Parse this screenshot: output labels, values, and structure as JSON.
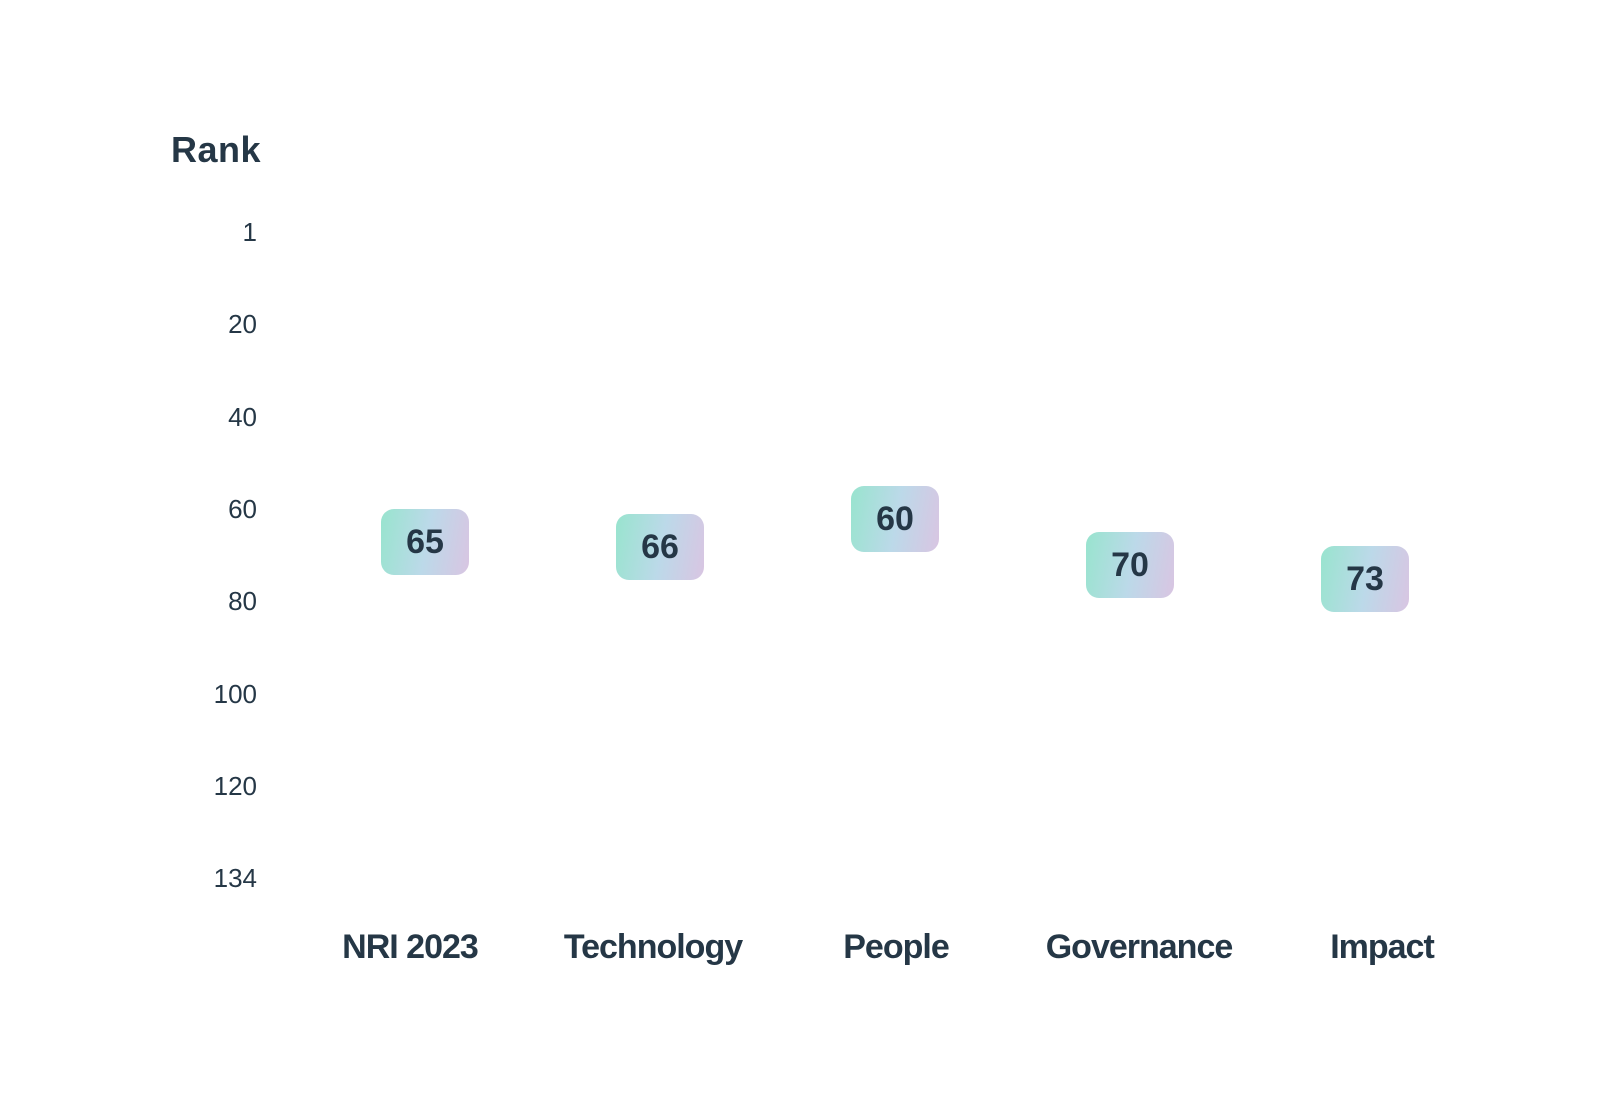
{
  "chart_data": {
    "type": "scatter",
    "subtype": "rank-badge-chart",
    "title": "",
    "ylabel": "Rank",
    "xlabel": "",
    "categories": [
      "NRI 2023",
      "Technology",
      "People",
      "Governance",
      "Impact"
    ],
    "values": [
      65,
      66,
      60,
      70,
      73
    ],
    "yticks": [
      1,
      20,
      40,
      60,
      80,
      100,
      120,
      134
    ],
    "ylim": [
      1,
      134
    ],
    "y_axis_inverted": true,
    "grid": false,
    "legend": false,
    "marker": "rounded-gradient-badge",
    "colors": {
      "text": "#253746",
      "badge_gradient_start": "#98E4CE",
      "badge_gradient_mid": "#BCD9E9",
      "badge_gradient_end": "#D9C5E2"
    }
  }
}
